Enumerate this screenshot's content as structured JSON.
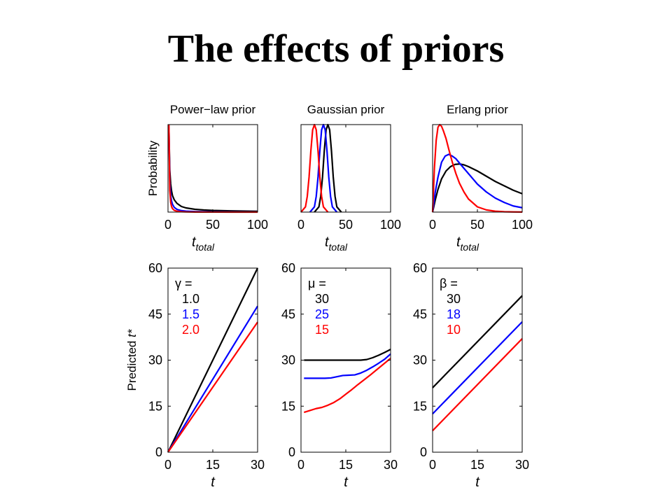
{
  "slide": {
    "title": "The effects of priors"
  },
  "chart_data": [
    {
      "type": "line",
      "title": "Power−law prior",
      "xlabel": "t",
      "xlabel_sub": "total",
      "ylabel": "Probability",
      "xlim": [
        0,
        100
      ],
      "xticks": [
        0,
        50,
        100
      ],
      "ylim": [
        0,
        1
      ],
      "yticks": [],
      "series": [
        {
          "color": "#000000",
          "x": [
            1,
            2,
            3,
            4,
            5,
            7,
            10,
            15,
            20,
            30,
            40,
            50,
            70,
            100
          ],
          "y": [
            0.96,
            0.48,
            0.32,
            0.24,
            0.19,
            0.14,
            0.1,
            0.064,
            0.048,
            0.032,
            0.024,
            0.019,
            0.014,
            0.0096
          ]
        },
        {
          "color": "#0000ff",
          "x": [
            1,
            2,
            3,
            4,
            5,
            7,
            10,
            15,
            20,
            30,
            40,
            50,
            70,
            100
          ],
          "y": [
            0.99,
            0.35,
            0.19,
            0.125,
            0.089,
            0.054,
            0.031,
            0.017,
            0.011,
            0.006,
            0.004,
            0.003,
            0.002,
            0.001
          ]
        },
        {
          "color": "#ff0000",
          "x": [
            1,
            2,
            3,
            4,
            5,
            7,
            10,
            15,
            20,
            30,
            40,
            50,
            70,
            100
          ],
          "y": [
            1.0,
            0.25,
            0.11,
            0.063,
            0.04,
            0.02,
            0.01,
            0.0044,
            0.0025,
            0.0011,
            0.0006,
            0.0004,
            0.0002,
            0.0001
          ]
        }
      ]
    },
    {
      "type": "line",
      "title": "Gaussian prior",
      "xlabel": "t",
      "xlabel_sub": "total",
      "xlim": [
        0,
        100
      ],
      "xticks": [
        0,
        50,
        100
      ],
      "ylim": [
        0,
        1
      ],
      "yticks": [],
      "series": [
        {
          "color": "#000000",
          "x": [
            15,
            20,
            22,
            24,
            26,
            28,
            30,
            32,
            34,
            36,
            38,
            40,
            45
          ],
          "y": [
            0.0,
            0.06,
            0.18,
            0.4,
            0.7,
            0.94,
            1.0,
            0.94,
            0.7,
            0.4,
            0.18,
            0.06,
            0.0
          ]
        },
        {
          "color": "#0000ff",
          "x": [
            10,
            15,
            17,
            19,
            21,
            23,
            25,
            27,
            29,
            31,
            33,
            35,
            40
          ],
          "y": [
            0.0,
            0.06,
            0.18,
            0.4,
            0.7,
            0.94,
            1.0,
            0.94,
            0.7,
            0.4,
            0.18,
            0.06,
            0.0
          ]
        },
        {
          "color": "#ff0000",
          "x": [
            0,
            5,
            7,
            9,
            11,
            13,
            15,
            17,
            19,
            21,
            23,
            25,
            30
          ],
          "y": [
            0.0,
            0.06,
            0.18,
            0.4,
            0.7,
            0.94,
            1.0,
            0.94,
            0.7,
            0.4,
            0.18,
            0.06,
            0.0
          ]
        }
      ]
    },
    {
      "type": "line",
      "title": "Erlang prior",
      "xlabel": "t",
      "xlabel_sub": "total",
      "xlim": [
        0,
        100
      ],
      "xticks": [
        0,
        50,
        100
      ],
      "ylim": [
        0,
        1
      ],
      "yticks": [],
      "series": [
        {
          "color": "#000000",
          "x": [
            0,
            3,
            6,
            10,
            15,
            20,
            25,
            30,
            35,
            40,
            50,
            60,
            70,
            80,
            90,
            100
          ],
          "y": [
            0,
            0.14,
            0.26,
            0.38,
            0.47,
            0.52,
            0.545,
            0.55,
            0.54,
            0.52,
            0.47,
            0.41,
            0.35,
            0.3,
            0.25,
            0.21
          ]
        },
        {
          "color": "#0000ff",
          "x": [
            0,
            3,
            6,
            10,
            14,
            18,
            22,
            26,
            30,
            35,
            40,
            50,
            60,
            70,
            80,
            90,
            100
          ],
          "y": [
            0,
            0.23,
            0.4,
            0.57,
            0.64,
            0.66,
            0.64,
            0.61,
            0.56,
            0.5,
            0.44,
            0.32,
            0.23,
            0.16,
            0.11,
            0.07,
            0.05
          ]
        },
        {
          "color": "#ff0000",
          "x": [
            0,
            2,
            4,
            6,
            8,
            10,
            12,
            15,
            18,
            22,
            26,
            30,
            35,
            40,
            50,
            60,
            70,
            80,
            90,
            100
          ],
          "y": [
            0,
            0.5,
            0.82,
            0.97,
            1.0,
            0.98,
            0.93,
            0.84,
            0.72,
            0.57,
            0.44,
            0.33,
            0.23,
            0.15,
            0.06,
            0.025,
            0.01,
            0.004,
            0.002,
            0.001
          ]
        }
      ]
    },
    {
      "type": "line",
      "xlabel": "t",
      "ylabel": "Predicted t*",
      "xlim": [
        0,
        30
      ],
      "xticks": [
        0,
        15,
        30
      ],
      "ylim": [
        0,
        60
      ],
      "yticks": [
        0,
        15,
        30,
        45,
        60
      ],
      "legend": {
        "param": "γ =",
        "values": [
          "1.0",
          "1.5",
          "2.0"
        ]
      },
      "series": [
        {
          "name": "1.0",
          "color": "#000000",
          "x": [
            0,
            30
          ],
          "y": [
            0,
            60
          ]
        },
        {
          "name": "1.5",
          "color": "#0000ff",
          "x": [
            0,
            30
          ],
          "y": [
            0,
            47.6
          ]
        },
        {
          "name": "2.0",
          "color": "#ff0000",
          "x": [
            0,
            30
          ],
          "y": [
            0,
            42.4
          ]
        }
      ]
    },
    {
      "type": "line",
      "xlabel": "t",
      "xlim": [
        0,
        30
      ],
      "xticks": [
        0,
        15,
        30
      ],
      "ylim": [
        0,
        60
      ],
      "yticks": [
        0,
        15,
        30,
        45,
        60
      ],
      "legend": {
        "param": "μ =",
        "values": [
          "30",
          "25",
          "15"
        ]
      },
      "series": [
        {
          "name": "30",
          "color": "#000000",
          "x": [
            1,
            5,
            10,
            15,
            20,
            22,
            24,
            26,
            28,
            30
          ],
          "y": [
            30,
            30,
            30,
            30,
            30,
            30.2,
            30.8,
            31.6,
            32.5,
            33.5
          ]
        },
        {
          "name": "25",
          "color": "#0000ff",
          "x": [
            1,
            5,
            8,
            10,
            12,
            14,
            16,
            18,
            20,
            22,
            24,
            26,
            28,
            30
          ],
          "y": [
            24.1,
            24.1,
            24.1,
            24.2,
            24.6,
            25.0,
            25.1,
            25.2,
            25.8,
            26.7,
            27.8,
            29.0,
            30.3,
            32.0
          ]
        },
        {
          "name": "15",
          "color": "#ff0000",
          "x": [
            1,
            3,
            5,
            7,
            9,
            11,
            13,
            15,
            17,
            19,
            21,
            23,
            25,
            27,
            29,
            30
          ],
          "y": [
            13.0,
            13.6,
            14.2,
            14.6,
            15.3,
            16.2,
            17.4,
            18.9,
            20.4,
            22.0,
            23.5,
            25.0,
            26.6,
            28.2,
            29.8,
            30.6
          ]
        }
      ]
    },
    {
      "type": "line",
      "xlabel": "t",
      "xlim": [
        0,
        30
      ],
      "xticks": [
        0,
        15,
        30
      ],
      "ylim": [
        0,
        60
      ],
      "yticks": [
        0,
        15,
        30,
        45,
        60
      ],
      "legend": {
        "param": "β =",
        "values": [
          "30",
          "18",
          "10"
        ]
      },
      "series": [
        {
          "name": "30",
          "color": "#000000",
          "x": [
            0,
            30
          ],
          "y": [
            21,
            51
          ]
        },
        {
          "name": "18",
          "color": "#0000ff",
          "x": [
            0,
            30
          ],
          "y": [
            12.5,
            42.5
          ]
        },
        {
          "name": "10",
          "color": "#ff0000",
          "x": [
            0,
            30
          ],
          "y": [
            7,
            37
          ]
        }
      ]
    }
  ]
}
